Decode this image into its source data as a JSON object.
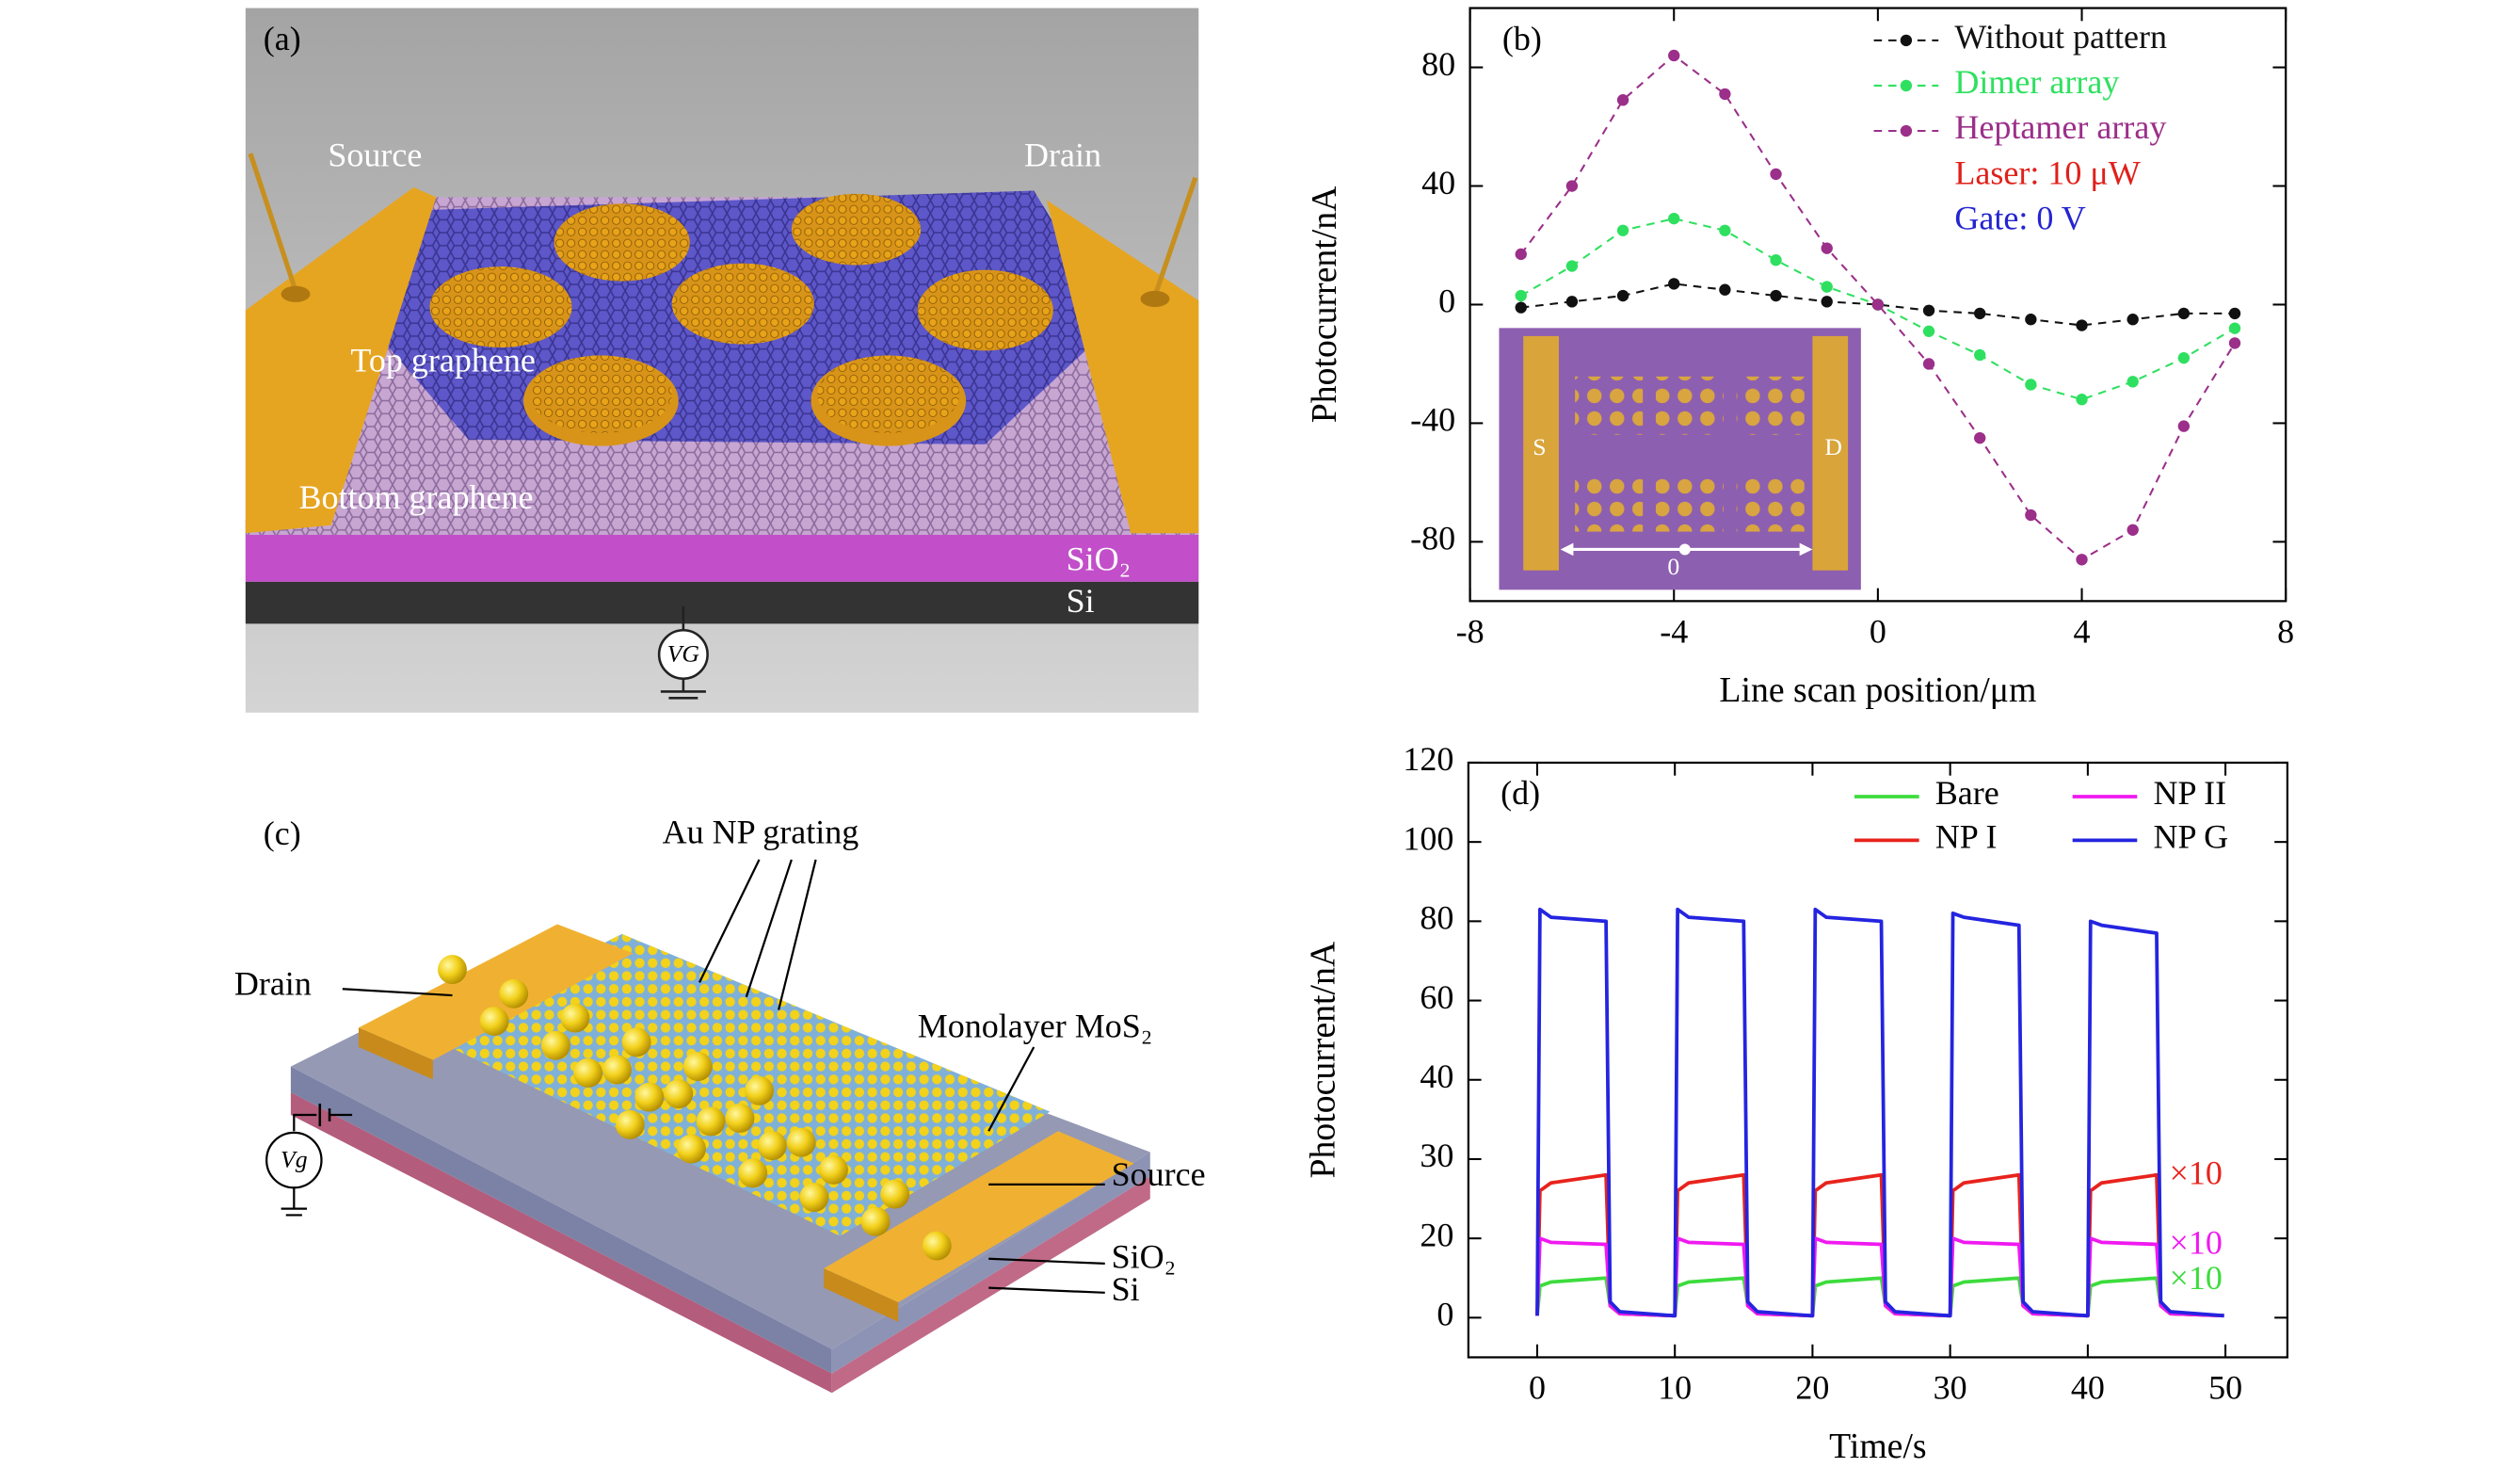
{
  "panel_a": {
    "label": "(a)",
    "source": "Source",
    "drain": "Drain",
    "top_layer": "Top graphene",
    "bottom_layer": "Bottom graphene",
    "oxide": "SiO₂",
    "substrate": "Si",
    "gate": "VG"
  },
  "panel_c": {
    "label": "(c)",
    "grating": "Au NP grating",
    "drain": "Drain",
    "channel": "Monolayer MoS₂",
    "source": "Source",
    "oxide": "SiO₂",
    "substrate": "Si",
    "gate": "Vg"
  },
  "chart_data": [
    {
      "type": "line",
      "panel_label": "(b)",
      "xlabel": "Line scan position/μm",
      "ylabel": "Photocurrent/nA",
      "x": [
        -7,
        -6,
        -5,
        -4,
        -3,
        -2,
        -1,
        0,
        1,
        2,
        3,
        4,
        5,
        6,
        7
      ],
      "series": [
        {
          "name": "Without pattern",
          "color": "#111111",
          "values": [
            -1,
            1,
            3,
            7,
            5,
            3,
            1,
            0,
            -2,
            -3,
            -5,
            -7,
            -5,
            -3,
            -3
          ]
        },
        {
          "name": "Dimer array",
          "color": "#2fe060",
          "values": [
            3,
            13,
            25,
            29,
            25,
            15,
            6,
            0,
            -9,
            -17,
            -27,
            -32,
            -26,
            -18,
            -8
          ]
        },
        {
          "name": "Heptamer array",
          "color": "#9b2f8a",
          "values": [
            17,
            40,
            69,
            84,
            71,
            44,
            19,
            0,
            -20,
            -45,
            -71,
            -86,
            -76,
            -41,
            -13
          ]
        }
      ],
      "xlim": [
        -8,
        8
      ],
      "ylim": [
        -100,
        100
      ],
      "xticks": [
        -8,
        -4,
        0,
        4,
        8
      ],
      "yticks": [
        -80,
        -40,
        0,
        40,
        80
      ],
      "markers": true,
      "line_style": "dashed",
      "annotations": [
        {
          "text": "Laser: 10 μW",
          "color": "#e0201a"
        },
        {
          "text": "Gate: 0 V",
          "color": "#2424d0"
        }
      ],
      "inset_labels": [
        "S",
        "D",
        "0"
      ]
    },
    {
      "type": "line",
      "panel_label": "(d)",
      "xlabel": "Time/s",
      "ylabel": "Photocurrent/nA",
      "x": [
        0,
        0.2,
        1,
        5,
        5.3,
        6,
        9.9,
        10,
        10.2,
        11,
        15,
        15.3,
        16,
        19.9,
        20,
        20.2,
        21,
        25,
        25.3,
        26,
        29.9,
        30,
        30.2,
        31,
        35,
        35.3,
        36,
        39.9,
        40,
        40.2,
        41,
        45,
        45.3,
        46,
        49.9
      ],
      "series": [
        {
          "name": "Bare",
          "color": "#3ddc3d",
          "values": [
            0.5,
            8,
            9,
            10,
            3,
            1,
            0.5,
            0.5,
            8,
            9,
            10,
            3,
            1,
            0.5,
            0.5,
            8,
            9,
            10,
            3,
            1,
            0.5,
            0.5,
            8,
            9,
            10,
            3,
            1,
            0.5,
            0.5,
            8,
            9,
            10,
            3,
            1,
            0.5
          ]
        },
        {
          "name": "NP I",
          "color": "#e8231c",
          "values": [
            0.5,
            26,
            27,
            28,
            3,
            1,
            0.5,
            0.5,
            26,
            27,
            28,
            3,
            1,
            0.5,
            0.5,
            26,
            27,
            28,
            3,
            1,
            0.5,
            0.5,
            26,
            27,
            28,
            3,
            1,
            0.5,
            0.5,
            26,
            27,
            28,
            3,
            1,
            0.5
          ]
        },
        {
          "name": "NP II",
          "color": "#f019f0",
          "values": [
            0.5,
            20,
            19,
            18.5,
            3,
            1,
            0.5,
            0.5,
            20,
            19,
            18.5,
            3,
            1,
            0.5,
            0.5,
            20,
            19,
            18.5,
            3,
            1,
            0.5,
            0.5,
            20,
            19,
            18.5,
            3,
            1,
            0.5,
            0.5,
            20,
            19,
            18.5,
            3,
            1,
            0.5
          ]
        },
        {
          "name": "NP G",
          "color": "#2424e0",
          "values": [
            0.5,
            83,
            81,
            80,
            4,
            1.5,
            0.5,
            0.5,
            83,
            81,
            80,
            4,
            1.5,
            0.5,
            0.5,
            83,
            81,
            80,
            4,
            1.5,
            0.5,
            0.5,
            82,
            81,
            79,
            4,
            1.5,
            0.5,
            0.5,
            80,
            79,
            77,
            4,
            1.5,
            0.5
          ]
        }
      ],
      "xlim": [
        -5,
        54.5
      ],
      "ylim": [
        -10,
        120
      ],
      "xticks": [
        0,
        10,
        20,
        30,
        40,
        50
      ],
      "yticks": [
        0,
        20,
        30,
        40,
        60,
        80,
        100,
        120
      ],
      "ytick_spacing": "uniform",
      "markers": false,
      "line_style": "solid",
      "legend_columns": 2,
      "annotations": [
        {
          "text": "×10",
          "color": "#e8231c"
        },
        {
          "text": "×10",
          "color": "#f019f0"
        },
        {
          "text": "×10",
          "color": "#3ddc3d"
        }
      ]
    }
  ]
}
